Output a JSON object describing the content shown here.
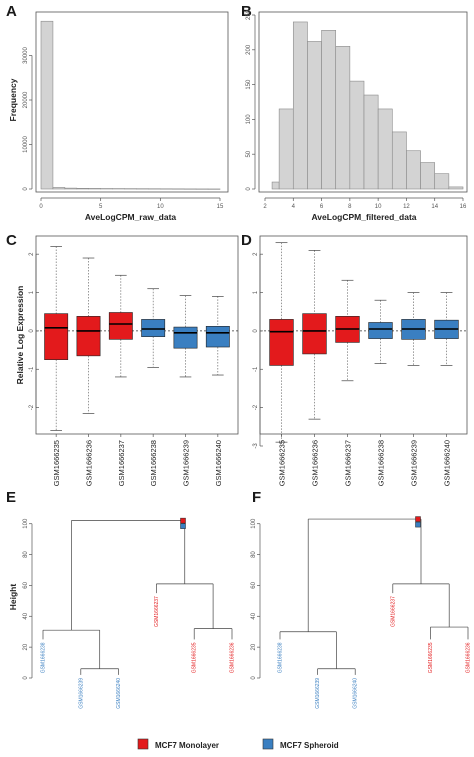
{
  "colors": {
    "monolayer": "#e31a1c",
    "spheroid": "#3a7fc1",
    "hist_fill": "#d3d3d3",
    "hist_stroke": "#8a8a8a",
    "axis": "#555555"
  },
  "legend": {
    "items": [
      {
        "label": "MCF7 Monolayer",
        "color": "#e31a1c"
      },
      {
        "label": "MCF7 Spheroid",
        "color": "#3a7fc1"
      }
    ]
  },
  "chart_data": [
    {
      "panel": "A",
      "type": "bar",
      "subtype": "histogram",
      "xlabel": "AveLogCPM_raw_data",
      "ylabel": "Frequency",
      "bin_edges": [
        0,
        1,
        2,
        3,
        4,
        5,
        6,
        7,
        8,
        9,
        10,
        11,
        12,
        13,
        14,
        15
      ],
      "values": [
        37700,
        350,
        200,
        150,
        120,
        100,
        90,
        80,
        70,
        60,
        50,
        40,
        30,
        20,
        15
      ],
      "xlim": [
        0,
        15
      ],
      "ylim": [
        0,
        40000
      ],
      "xticks": [
        0,
        5,
        10,
        15
      ],
      "yticks": [
        0,
        10000,
        20000,
        30000
      ]
    },
    {
      "panel": "B",
      "type": "bar",
      "subtype": "histogram",
      "xlabel": "AveLogCPM_filtered_data",
      "ylabel": "",
      "bin_edges": [
        2.5,
        3,
        4,
        5,
        6,
        7,
        8,
        9,
        10,
        11,
        12,
        13,
        14,
        15,
        16
      ],
      "values": [
        10,
        115,
        240,
        212,
        228,
        205,
        155,
        135,
        115,
        82,
        55,
        38,
        22,
        3
      ],
      "xlim": [
        2,
        16
      ],
      "ylim": [
        0,
        250
      ],
      "xticks": [
        2,
        4,
        6,
        8,
        10,
        12,
        14,
        16
      ],
      "yticks": [
        0,
        50,
        100,
        150,
        200,
        250
      ]
    },
    {
      "panel": "C",
      "type": "box",
      "ylabel": "Relative Log Expression",
      "ylim": [
        -3,
        2.5
      ],
      "yticks": [
        -2,
        -1,
        0,
        1,
        2
      ],
      "categories": [
        "GSM1666235",
        "GSM1666236",
        "GSM1666237",
        "GSM1666238",
        "GSM1666239",
        "GSM1666240"
      ],
      "groups": [
        "monolayer",
        "monolayer",
        "monolayer",
        "spheroid",
        "spheroid",
        "spheroid"
      ],
      "boxes": [
        {
          "wlo": -2.6,
          "q1": -0.75,
          "med": 0.08,
          "q3": 0.45,
          "whi": 2.2
        },
        {
          "wlo": -2.15,
          "q1": -0.65,
          "med": 0.0,
          "q3": 0.38,
          "whi": 1.9
        },
        {
          "wlo": -1.2,
          "q1": -0.22,
          "med": 0.18,
          "q3": 0.48,
          "whi": 1.45
        },
        {
          "wlo": -0.95,
          "q1": -0.15,
          "med": 0.05,
          "q3": 0.3,
          "whi": 1.1
        },
        {
          "wlo": -1.2,
          "q1": -0.45,
          "med": -0.05,
          "q3": 0.1,
          "whi": 0.92
        },
        {
          "wlo": -1.15,
          "q1": -0.42,
          "med": -0.05,
          "q3": 0.12,
          "whi": 0.9
        }
      ]
    },
    {
      "panel": "D",
      "type": "box",
      "ylabel": "",
      "ylim": [
        -3,
        2.5
      ],
      "yticks": [
        -3,
        -2,
        -1,
        0,
        1,
        2
      ],
      "categories": [
        "GSM1666235",
        "GSM1666236",
        "GSM1666237",
        "GSM1666238",
        "GSM1666239",
        "GSM1666240"
      ],
      "groups": [
        "monolayer",
        "monolayer",
        "monolayer",
        "spheroid",
        "spheroid",
        "spheroid"
      ],
      "boxes": [
        {
          "wlo": -2.9,
          "q1": -0.9,
          "med": -0.02,
          "q3": 0.3,
          "whi": 2.3
        },
        {
          "wlo": -2.3,
          "q1": -0.6,
          "med": 0.0,
          "q3": 0.45,
          "whi": 2.1
        },
        {
          "wlo": -1.3,
          "q1": -0.3,
          "med": 0.05,
          "q3": 0.38,
          "whi": 1.32
        },
        {
          "wlo": -0.85,
          "q1": -0.2,
          "med": 0.05,
          "q3": 0.22,
          "whi": 0.8
        },
        {
          "wlo": -0.9,
          "q1": -0.22,
          "med": 0.05,
          "q3": 0.3,
          "whi": 1.0
        },
        {
          "wlo": -0.9,
          "q1": -0.2,
          "med": 0.05,
          "q3": 0.28,
          "whi": 1.0
        }
      ]
    },
    {
      "panel": "E",
      "type": "dendrogram",
      "ylabel": "Height",
      "ylim": [
        0,
        105
      ],
      "yticks": [
        0,
        20,
        40,
        60,
        80,
        100
      ],
      "leaves": [
        {
          "label": "GSM1666238",
          "group": "spheroid"
        },
        {
          "label": "GSM1666239",
          "group": "spheroid"
        },
        {
          "label": "GSM1666240",
          "group": "spheroid"
        },
        {
          "label": "GSM1666237",
          "group": "monolayer"
        },
        {
          "label": "GSM1666235",
          "group": "monolayer"
        },
        {
          "label": "GSM1666236",
          "group": "monolayer"
        }
      ],
      "merges": [
        {
          "left": 1,
          "right": 2,
          "height": 6
        },
        {
          "left": 4,
          "right": 5,
          "height": 32
        },
        {
          "left": 0,
          "right": "m0",
          "height": 31
        },
        {
          "left": 3,
          "right": "m1",
          "height": 61
        },
        {
          "left": "m2",
          "right": "m3",
          "height": 102
        }
      ]
    },
    {
      "panel": "F",
      "type": "dendrogram",
      "ylabel": "",
      "ylim": [
        0,
        105
      ],
      "yticks": [
        0,
        20,
        40,
        60,
        80,
        100
      ],
      "leaves": [
        {
          "label": "GSM1666238",
          "group": "spheroid"
        },
        {
          "label": "GSM1666239",
          "group": "spheroid"
        },
        {
          "label": "GSM1666240",
          "group": "spheroid"
        },
        {
          "label": "GSM1666237",
          "group": "monolayer"
        },
        {
          "label": "GSM1666235",
          "group": "monolayer"
        },
        {
          "label": "GSM1666236",
          "group": "monolayer"
        }
      ],
      "merges": [
        {
          "left": 1,
          "right": 2,
          "height": 6
        },
        {
          "left": 4,
          "right": 5,
          "height": 33
        },
        {
          "left": 0,
          "right": "m0",
          "height": 30
        },
        {
          "left": 3,
          "right": "m1",
          "height": 61
        },
        {
          "left": "m2",
          "right": "m3",
          "height": 103
        }
      ]
    }
  ]
}
